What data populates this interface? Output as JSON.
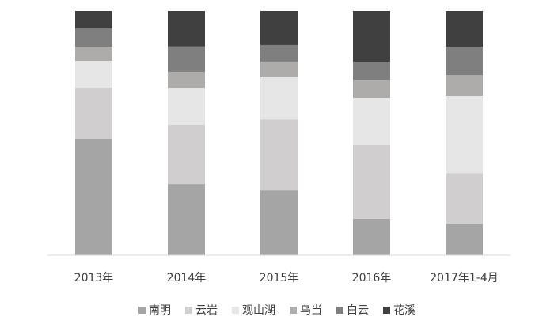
{
  "chart_data": {
    "type": "stacked-bar",
    "categories": [
      "2013年",
      "2014年",
      "2015年",
      "2016年",
      "2017年1-4月"
    ],
    "ylim": [
      0,
      100
    ],
    "legend": "bottom",
    "series": [
      {
        "name": "南明",
        "color": "#a5a5a5",
        "values": [
          47.6,
          29.1,
          26.5,
          14.9,
          12.9
        ]
      },
      {
        "name": "云岩",
        "color": "#d0cece",
        "values": [
          21.0,
          24.3,
          29.1,
          30.1,
          20.7
        ]
      },
      {
        "name": "观山湖",
        "color": "#e7e6e6",
        "values": [
          11.0,
          15.2,
          17.2,
          19.4,
          31.7
        ]
      },
      {
        "name": "乌当",
        "color": "#aeabab",
        "values": [
          5.8,
          6.5,
          6.5,
          7.4,
          8.4
        ]
      },
      {
        "name": "白云",
        "color": "#7f7f7f",
        "values": [
          7.4,
          10.4,
          6.8,
          7.4,
          11.7
        ]
      },
      {
        "name": "花溪",
        "color": "#404040",
        "values": [
          7.2,
          14.5,
          13.9,
          20.8,
          14.6
        ]
      }
    ]
  }
}
